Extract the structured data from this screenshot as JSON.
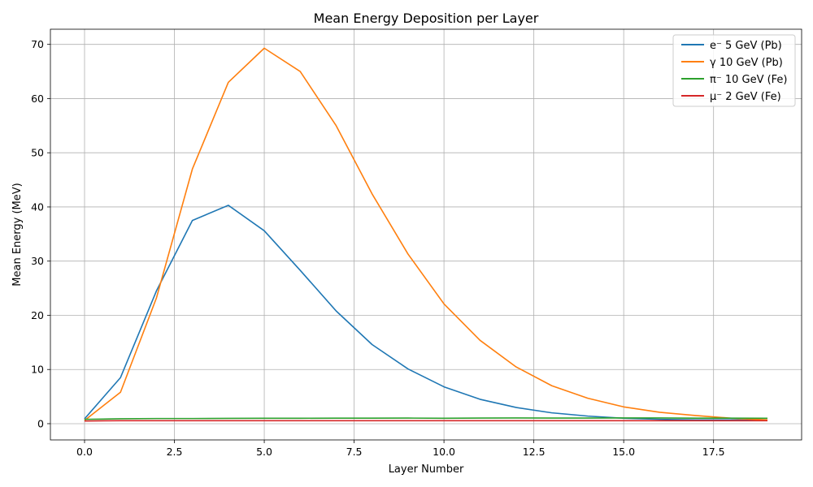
{
  "chart_data": {
    "type": "line",
    "title": "Mean Energy Deposition per Layer",
    "xlabel": "Layer Number",
    "ylabel": "Mean Energy (MeV)",
    "xlim": [
      -0.95,
      19.95
    ],
    "ylim": [
      -3,
      72.8
    ],
    "xticks": [
      0,
      2.5,
      5,
      7.5,
      10,
      12.5,
      15,
      17.5
    ],
    "xtick_labels": [
      "0.0",
      "2.5",
      "5.0",
      "7.5",
      "10.0",
      "12.5",
      "15.0",
      "17.5"
    ],
    "yticks": [
      0,
      10,
      20,
      30,
      40,
      50,
      60,
      70
    ],
    "ytick_labels": [
      "0",
      "10",
      "20",
      "30",
      "40",
      "50",
      "60",
      "70"
    ],
    "grid": true,
    "legend_position": "top-right",
    "x": [
      0,
      1,
      2,
      3,
      4,
      5,
      6,
      7,
      8,
      9,
      10,
      11,
      12,
      13,
      14,
      15,
      16,
      17,
      18,
      19
    ],
    "series": [
      {
        "name": "e⁻ 5 GeV (Pb)",
        "color": "#1f77b4",
        "values": [
          0.9,
          8.5,
          24.5,
          37.5,
          40.3,
          35.6,
          28.3,
          20.8,
          14.6,
          10.1,
          6.8,
          4.5,
          3.0,
          2.0,
          1.4,
          1.0,
          0.8,
          0.7,
          0.7,
          0.6
        ]
      },
      {
        "name": "γ 10 GeV (Pb)",
        "color": "#ff7f0e",
        "values": [
          0.6,
          5.8,
          23.2,
          47.0,
          63.0,
          69.3,
          65.0,
          55.0,
          42.4,
          31.3,
          22.1,
          15.4,
          10.5,
          7.0,
          4.7,
          3.1,
          2.1,
          1.5,
          1.0,
          0.7
        ]
      },
      {
        "name": "π⁻ 10 GeV (Fe)",
        "color": "#2ca02c",
        "values": [
          0.8,
          0.9,
          0.95,
          0.95,
          0.98,
          1.0,
          1.0,
          1.02,
          1.02,
          1.03,
          1.0,
          1.03,
          1.05,
          1.03,
          1.04,
          1.05,
          1.05,
          1.02,
          1.02,
          1.0
        ]
      },
      {
        "name": "μ⁻ 2 GeV (Fe)",
        "color": "#d62728",
        "values": [
          0.5,
          0.55,
          0.55,
          0.55,
          0.55,
          0.55,
          0.55,
          0.55,
          0.55,
          0.55,
          0.55,
          0.55,
          0.55,
          0.55,
          0.55,
          0.55,
          0.55,
          0.55,
          0.55,
          0.55
        ]
      }
    ]
  },
  "colors": {
    "grid": "#b0b0b0",
    "axis": "#000000",
    "legend_border": "#cccccc"
  }
}
